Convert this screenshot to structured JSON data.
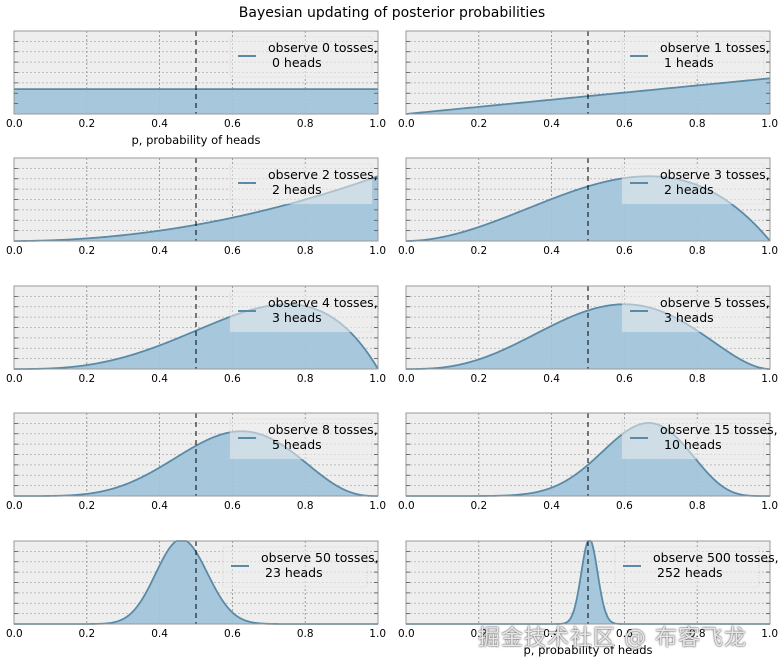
{
  "colors": {
    "axes_bg": "#eeeeee",
    "fill": "#a2c5da",
    "line": "#5b8aa6",
    "grid": "#b0b0b0",
    "frame": "#999999"
  },
  "chart_data": {
    "type": "area",
    "title": "Bayesian updating of posterior probabilities",
    "xlabel": "p, probability of heads",
    "xlim": [
      0,
      1
    ],
    "xticks": [
      "0.0",
      "0.2",
      "0.4",
      "0.6",
      "0.8",
      "1.0"
    ],
    "grid": true,
    "reference_line": {
      "x": 0.5,
      "style": "dashed"
    },
    "legend_placement": "upper-right",
    "panels": [
      {
        "tosses": 0,
        "heads": 0,
        "legend": [
          "observe 0 tosses,",
          "0 heads"
        ],
        "show_xlabel": true
      },
      {
        "tosses": 1,
        "heads": 1,
        "legend": [
          "observe 1 tosses,",
          "1 heads"
        ],
        "show_xlabel": false
      },
      {
        "tosses": 2,
        "heads": 2,
        "legend": [
          "observe 2 tosses,",
          "2 heads"
        ],
        "show_xlabel": false
      },
      {
        "tosses": 3,
        "heads": 2,
        "legend": [
          "observe 3 tosses,",
          "2 heads"
        ],
        "show_xlabel": false
      },
      {
        "tosses": 4,
        "heads": 3,
        "legend": [
          "observe 4 tosses,",
          "3 heads"
        ],
        "show_xlabel": false
      },
      {
        "tosses": 5,
        "heads": 3,
        "legend": [
          "observe 5 tosses,",
          "3 heads"
        ],
        "show_xlabel": false
      },
      {
        "tosses": 8,
        "heads": 5,
        "legend": [
          "observe 8 tosses,",
          "5 heads"
        ],
        "show_xlabel": false
      },
      {
        "tosses": 15,
        "heads": 10,
        "legend": [
          "observe 15 tosses,",
          "10 heads"
        ],
        "show_xlabel": false
      },
      {
        "tosses": 50,
        "heads": 23,
        "legend": [
          "observe 50 tosses,",
          "23 heads"
        ],
        "show_xlabel": false
      },
      {
        "tosses": 500,
        "heads": 252,
        "legend": [
          "observe 500 tosses,",
          "252 heads"
        ],
        "show_xlabel": true
      }
    ],
    "ymax_relative_to_peak": [
      0.3,
      0.43,
      0.78,
      0.78,
      0.78,
      0.78,
      0.78,
      0.88,
      1.02,
      1.02
    ]
  },
  "watermark": "掘金技术社区 @ 布客飞龙"
}
